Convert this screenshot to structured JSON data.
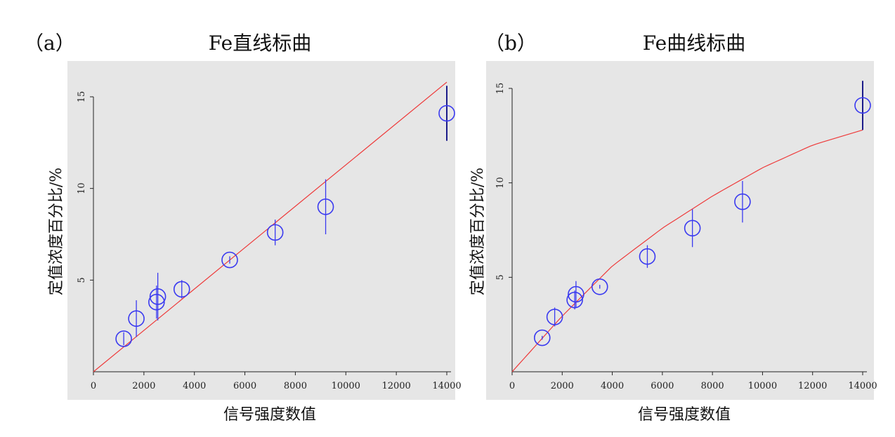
{
  "chart_data": [
    {
      "type": "scatter",
      "panel_label": "（a）",
      "title": "Fe直线标曲",
      "xlabel": "信号强度数值",
      "ylabel": "定值浓度百分比/%",
      "xlim": [
        0,
        14000
      ],
      "ylim": [
        0,
        15
      ],
      "x_ticks": [
        "0",
        "2000",
        "4000",
        "6000",
        "8000",
        "10000",
        "12000",
        "14000"
      ],
      "y_ticks": [
        "5",
        "10",
        "15"
      ],
      "grid": false,
      "series": [
        {
          "kind": "points",
          "x": [
            1200,
            1700,
            2500,
            2550,
            3500,
            5400,
            7200,
            9200,
            14000
          ],
          "y": [
            1.8,
            2.9,
            3.8,
            4.1,
            4.5,
            6.1,
            7.6,
            9.0,
            14.1
          ],
          "err": [
            0.35,
            1.0,
            0.9,
            1.3,
            0.5,
            0.2,
            0.7,
            1.5,
            1.5
          ]
        },
        {
          "kind": "fit",
          "fit": "linear",
          "x": [
            0,
            14000
          ],
          "y": [
            0,
            15.8
          ]
        }
      ],
      "colors": {
        "points": "#3a3af0",
        "fit": "#ee3a3a",
        "error_strong": "#1c1c8a",
        "background": "#e6e6e6"
      }
    },
    {
      "type": "scatter",
      "panel_label": "（b）",
      "title": "Fe曲线标曲",
      "xlabel": "信号强度数值",
      "ylabel": "定值浓度百分比/%",
      "xlim": [
        0,
        14000
      ],
      "ylim": [
        0,
        15
      ],
      "x_ticks": [
        "0",
        "2000",
        "4000",
        "6000",
        "8000",
        "10000",
        "12000",
        "14000"
      ],
      "y_ticks": [
        "5",
        "10",
        "15"
      ],
      "grid": false,
      "series": [
        {
          "kind": "points",
          "x": [
            1200,
            1700,
            2500,
            2550,
            3500,
            5400,
            7200,
            9200,
            14000
          ],
          "y": [
            1.8,
            2.9,
            3.8,
            4.1,
            4.5,
            6.1,
            7.6,
            9.0,
            14.1
          ],
          "err": [
            0.1,
            0.5,
            0.5,
            0.7,
            0.1,
            0.6,
            1.0,
            1.1,
            1.3
          ]
        },
        {
          "kind": "fit",
          "fit": "quadratic",
          "x": [
            0,
            2000,
            4000,
            6000,
            8000,
            10000,
            12000,
            14000
          ],
          "y": [
            0,
            2.95,
            5.6,
            7.6,
            9.3,
            10.8,
            12.0,
            12.8
          ]
        }
      ],
      "colors": {
        "points": "#3a3af0",
        "fit": "#ee3a3a",
        "error_strong": "#1c1c8a",
        "background": "#e6e6e6"
      }
    }
  ]
}
